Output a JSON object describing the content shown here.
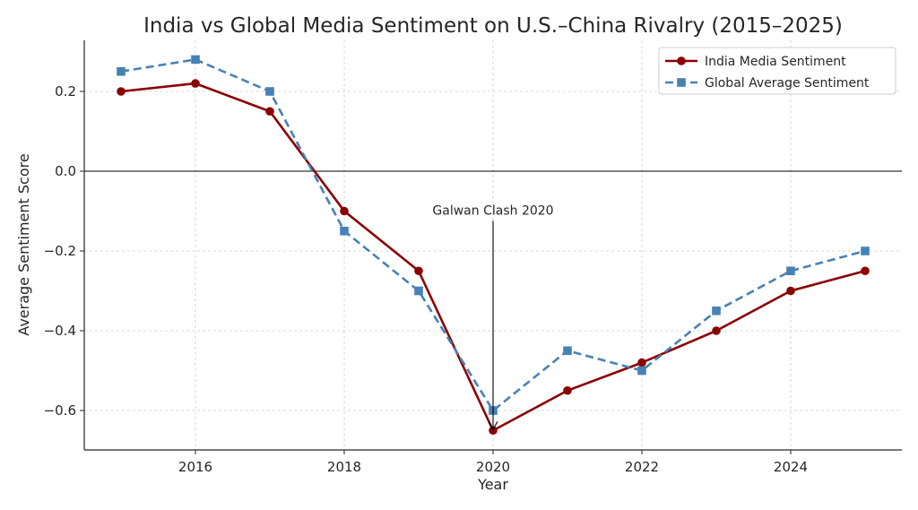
{
  "chart_data": {
    "type": "line",
    "title": "India vs Global Media Sentiment on U.S.–China Rivalry (2015–2025)",
    "xlabel": "Year",
    "ylabel": "Average Sentiment Score",
    "x": [
      2015,
      2016,
      2017,
      2018,
      2019,
      2020,
      2021,
      2022,
      2023,
      2024,
      2025
    ],
    "xlim": [
      2014.5,
      2025.5
    ],
    "ylim": [
      -0.7,
      0.33
    ],
    "xticks": [
      2016,
      2018,
      2020,
      2022,
      2024
    ],
    "xtick_labels": [
      "2016",
      "2018",
      "2020",
      "2022",
      "2024"
    ],
    "yticks": [
      0.2,
      0.0,
      -0.2,
      -0.4,
      -0.6
    ],
    "ytick_labels": [
      "0.2",
      "0.0",
      "−0.2",
      "−0.4",
      "−0.6"
    ],
    "grid": true,
    "zero_line": true,
    "legend_position": "top-right",
    "series": [
      {
        "name": "India Media Sentiment",
        "color": "#8b0000",
        "line_style": "solid",
        "marker": "circle",
        "values": [
          0.2,
          0.22,
          0.15,
          -0.1,
          -0.25,
          -0.65,
          -0.55,
          -0.48,
          -0.4,
          -0.3,
          -0.25
        ]
      },
      {
        "name": "Global Average Sentiment",
        "color": "#4682b4",
        "line_style": "dashed",
        "marker": "square",
        "values": [
          0.25,
          0.28,
          0.2,
          -0.15,
          -0.3,
          -0.6,
          -0.45,
          -0.5,
          -0.35,
          -0.25,
          -0.2
        ]
      }
    ],
    "annotations": [
      {
        "text": "Galwan Clash 2020",
        "x": 2020,
        "y": -0.65,
        "arrow": true,
        "text_y": -0.12
      }
    ]
  }
}
